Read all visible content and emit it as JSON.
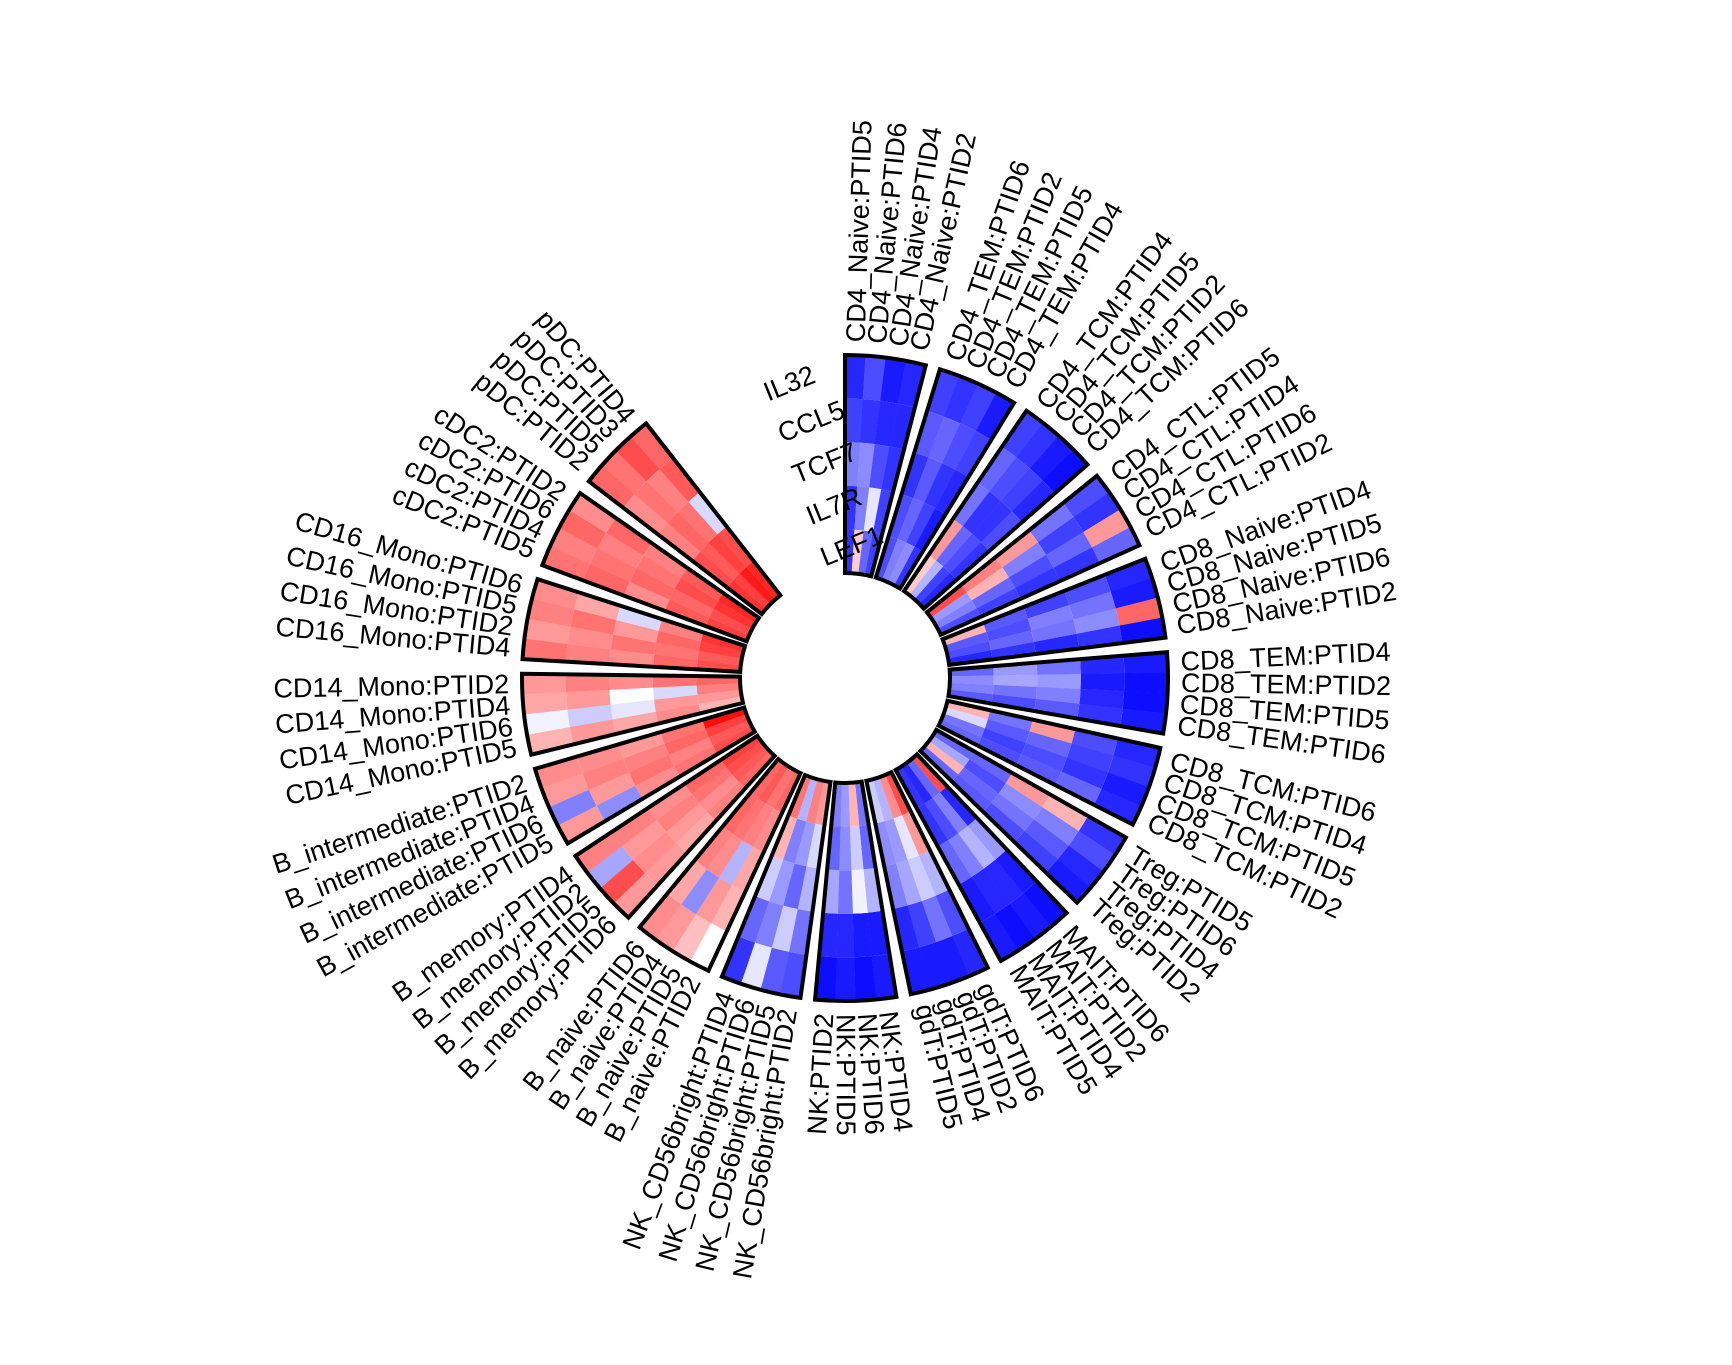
{
  "chart_data": {
    "type": "heatmap",
    "layout": "circular",
    "color_scale": {
      "low": "#ff0000",
      "mid": "#ffffff",
      "high": "#0000ff"
    },
    "genes": [
      "IL32",
      "CCL5",
      "TCF7",
      "IL7R",
      "LEF1"
    ],
    "sectors": [
      {
        "name": "CD4_Naive",
        "labels": [
          "CD4_Naive:PTID5",
          "CD4_Naive:PTID6",
          "CD4_Naive:PTID4",
          "CD4_Naive:PTID2"
        ],
        "values": [
          [
            0.85,
            0.7,
            0.9,
            0.85
          ],
          [
            0.75,
            0.8,
            0.85,
            0.85
          ],
          [
            0.5,
            0.45,
            0.7,
            0.8
          ],
          [
            0.8,
            0.5,
            0.1,
            0.75
          ],
          [
            0.8,
            -0.2,
            0.6,
            0.75
          ]
        ]
      },
      {
        "name": "CD4_TEM",
        "labels": [
          "CD4_TEM:PTID6",
          "CD4_TEM:PTID2",
          "CD4_TEM:PTID5",
          "CD4_TEM:PTID4"
        ],
        "values": [
          [
            0.75,
            0.8,
            0.75,
            0.9
          ],
          [
            0.65,
            0.6,
            0.7,
            0.75
          ],
          [
            0.8,
            0.65,
            0.8,
            0.85
          ],
          [
            0.7,
            0.6,
            0.75,
            0.9
          ],
          [
            0.7,
            0.5,
            0.45,
            0.8
          ]
        ]
      },
      {
        "name": "CD4_TCM",
        "labels": [
          "CD4_TCM:PTID4",
          "CD4_TCM:PTID5",
          "CD4_TCM:PTID2",
          "CD4_TCM:PTID6"
        ],
        "values": [
          [
            0.75,
            0.8,
            0.9,
            0.95
          ],
          [
            0.6,
            0.7,
            0.75,
            0.85
          ],
          [
            0.55,
            0.8,
            0.8,
            0.7
          ],
          [
            -0.4,
            0.6,
            0.7,
            0.8
          ],
          [
            -0.2,
            0.3,
            0.75,
            0.85
          ]
        ]
      },
      {
        "name": "CD4_CTL",
        "labels": [
          "CD4_CTL:PTID5",
          "CD4_CTL:PTID4",
          "CD4_CTL:PTID6",
          "CD4_CTL:PTID2"
        ],
        "values": [
          [
            0.7,
            0.8,
            -0.4,
            0.6
          ],
          [
            0.55,
            0.75,
            0.6,
            0.8
          ],
          [
            -0.4,
            0.5,
            0.7,
            0.8
          ],
          [
            -0.5,
            -0.3,
            0.6,
            0.75
          ],
          [
            -0.7,
            0.4,
            0.5,
            0.7
          ]
        ]
      },
      {
        "name": "CD8_Naive",
        "labels": [
          "CD8_Naive:PTID4",
          "CD8_Naive:PTID5",
          "CD8_Naive:PTID6",
          "CD8_Naive:PTID2"
        ],
        "values": [
          [
            0.85,
            0.9,
            -0.6,
            0.95
          ],
          [
            0.7,
            0.55,
            0.45,
            0.8
          ],
          [
            0.75,
            0.5,
            0.55,
            0.85
          ],
          [
            0.65,
            0.7,
            0.6,
            0.8
          ],
          [
            -0.3,
            0.65,
            0.7,
            0.85
          ]
        ]
      },
      {
        "name": "CD8_TEM",
        "labels": [
          "CD8_TEM:PTID4",
          "CD8_TEM:PTID2",
          "CD8_TEM:PTID5",
          "CD8_TEM:PTID6"
        ],
        "values": [
          [
            0.9,
            0.95,
            0.95,
            0.9
          ],
          [
            0.85,
            0.9,
            0.85,
            0.8
          ],
          [
            0.55,
            0.4,
            0.5,
            0.65
          ],
          [
            0.4,
            0.35,
            0.55,
            0.7
          ],
          [
            0.6,
            0.45,
            0.5,
            0.65
          ]
        ]
      },
      {
        "name": "CD8_TCM",
        "labels": [
          "CD8_TCM:PTID6",
          "CD8_TCM:PTID4",
          "CD8_TCM:PTID5",
          "CD8_TCM:PTID2"
        ],
        "values": [
          [
            0.85,
            0.8,
            0.9,
            0.85
          ],
          [
            0.7,
            0.75,
            0.8,
            0.6
          ],
          [
            -0.4,
            0.6,
            0.7,
            0.65
          ],
          [
            0.55,
            0.65,
            0.75,
            0.7
          ],
          [
            -0.3,
            0.15,
            0.55,
            0.6
          ]
        ]
      },
      {
        "name": "Treg",
        "labels": [
          "Treg:PTID5",
          "Treg:PTID6",
          "Treg:PTID4",
          "Treg:PTID2"
        ],
        "values": [
          [
            0.8,
            0.7,
            0.85,
            0.9
          ],
          [
            -0.3,
            0.5,
            0.65,
            0.75
          ],
          [
            -0.4,
            0.45,
            0.55,
            0.7
          ],
          [
            0.6,
            0.7,
            0.6,
            0.65
          ],
          [
            0.6,
            0.35,
            -0.3,
            0.6
          ]
        ]
      },
      {
        "name": "MAIT",
        "labels": [
          "MAIT:PTID6",
          "MAIT:PTID2",
          "MAIT:PTID4",
          "MAIT:PTID5"
        ],
        "values": [
          [
            0.95,
            0.9,
            0.95,
            0.9
          ],
          [
            0.9,
            0.85,
            0.85,
            0.9
          ],
          [
            0.4,
            0.3,
            0.5,
            0.6
          ],
          [
            0.85,
            0.5,
            0.7,
            0.8
          ],
          [
            -0.7,
            0.6,
            0.85,
            0.8
          ]
        ]
      },
      {
        "name": "gdT",
        "labels": [
          "gdT:PTID6",
          "gdT:PTID2",
          "gdT:PTID4",
          "gdT:PTID5"
        ],
        "values": [
          [
            0.85,
            0.9,
            0.9,
            0.9
          ],
          [
            0.7,
            0.55,
            0.75,
            0.85
          ],
          [
            0.3,
            0.2,
            0.35,
            0.5
          ],
          [
            -0.4,
            0.1,
            0.4,
            0.45
          ],
          [
            -0.7,
            -0.45,
            0.3,
            0.2
          ]
        ]
      },
      {
        "name": "NK",
        "labels": [
          "NK:PTID4",
          "NK:PTID6",
          "NK:PTID5",
          "NK:PTID2"
        ],
        "values": [
          [
            0.9,
            0.95,
            0.9,
            0.95
          ],
          [
            0.9,
            0.9,
            0.85,
            0.85
          ],
          [
            0.3,
            0.05,
            0.55,
            0.35
          ],
          [
            0.6,
            0.2,
            0.45,
            0.6
          ],
          [
            0.55,
            -0.3,
            0.4,
            0.5
          ]
        ]
      },
      {
        "name": "NK_CD56bright",
        "labels": [
          "NK_CD56bright:PTID2",
          "NK_CD56bright:PTID5",
          "NK_CD56bright:PTID6",
          "NK_CD56bright:PTID4"
        ],
        "values": [
          [
            0.7,
            0.65,
            0.1,
            0.8
          ],
          [
            0.55,
            0.2,
            0.5,
            0.6
          ],
          [
            0.3,
            0.6,
            0.4,
            0.2
          ],
          [
            0.15,
            0.4,
            0.5,
            -0.3
          ],
          [
            -0.4,
            -0.5,
            0.3,
            -0.55
          ]
        ]
      },
      {
        "name": "B_naive",
        "labels": [
          "B_naive:PTID2",
          "B_naive:PTID5",
          "B_naive:PTID4",
          "B_naive:PTID6"
        ],
        "values": [
          [
            0.0,
            -0.25,
            -0.4,
            -0.45
          ],
          [
            -0.3,
            -0.4,
            0.45,
            -0.35
          ],
          [
            -0.35,
            0.3,
            -0.45,
            -0.5
          ],
          [
            -0.45,
            -0.5,
            -0.55,
            -0.6
          ],
          [
            -0.6,
            -0.55,
            -0.65,
            -0.6
          ]
        ]
      },
      {
        "name": "B_memory",
        "labels": [
          "B_memory:PTID6",
          "B_memory:PTID5",
          "B_memory:PTID2",
          "B_memory:PTID4"
        ],
        "values": [
          [
            -0.4,
            -0.7,
            0.35,
            -0.5
          ],
          [
            -0.4,
            -0.45,
            -0.4,
            -0.5
          ],
          [
            -0.35,
            -0.4,
            -0.5,
            -0.45
          ],
          [
            -0.5,
            -0.45,
            -0.55,
            -0.6
          ],
          [
            -0.6,
            -0.65,
            -0.7,
            -0.75
          ]
        ]
      },
      {
        "name": "B_intermediate",
        "labels": [
          "B_intermediate:PTID5",
          "B_intermediate:PTID6",
          "B_intermediate:PTID4",
          "B_intermediate:PTID2"
        ],
        "values": [
          [
            -0.4,
            0.5,
            -0.4,
            -0.45
          ],
          [
            0.45,
            -0.4,
            -0.5,
            -0.45
          ],
          [
            -0.45,
            -0.55,
            -0.5,
            -0.4
          ],
          [
            -0.55,
            -0.5,
            -0.6,
            -0.55
          ],
          [
            -0.7,
            -0.65,
            -0.75,
            -0.95
          ]
        ]
      },
      {
        "name": "CD14_Mono",
        "labels": [
          "CD14_Mono:PTID5",
          "CD14_Mono:PTID6",
          "CD14_Mono:PTID4",
          "CD14_Mono:PTID2"
        ],
        "values": [
          [
            -0.3,
            0.05,
            -0.35,
            -0.4
          ],
          [
            -0.4,
            0.2,
            -0.4,
            -0.5
          ],
          [
            -0.35,
            0.1,
            0.0,
            -0.45
          ],
          [
            -0.45,
            -0.4,
            0.15,
            -0.55
          ],
          [
            -0.3,
            -0.4,
            -0.5,
            -0.6
          ]
        ]
      },
      {
        "name": "CD16_Mono",
        "labels": [
          "CD16_Mono:PTID4",
          "CD16_Mono:PTID2",
          "CD16_Mono:PTID5",
          "CD16_Mono:PTID6"
        ],
        "values": [
          [
            -0.55,
            -0.4,
            -0.5,
            -0.45
          ],
          [
            -0.5,
            -0.45,
            -0.55,
            -0.35
          ],
          [
            -0.45,
            -0.55,
            -0.4,
            0.15
          ],
          [
            -0.6,
            -0.55,
            -0.6,
            -0.5
          ],
          [
            -0.7,
            -0.65,
            -0.75,
            -0.8
          ]
        ]
      },
      {
        "name": "cDC2",
        "labels": [
          "cDC2:PTID5",
          "cDC2:PTID4",
          "cDC2:PTID6",
          "cDC2:PTID2"
        ],
        "values": [
          [
            -0.55,
            -0.5,
            -0.6,
            -0.45
          ],
          [
            -0.6,
            -0.55,
            -0.5,
            -0.6
          ],
          [
            -0.45,
            -0.6,
            -0.55,
            -0.5
          ],
          [
            -0.65,
            -0.6,
            -0.7,
            -0.65
          ],
          [
            -0.75,
            -0.7,
            -0.8,
            -0.85
          ]
        ]
      },
      {
        "name": "pDC",
        "labels": [
          "pDC:PTID2",
          "pDC:PTID5",
          "pDC:PTID3",
          "pDC:PTID4"
        ],
        "values": [
          [
            -0.6,
            -0.55,
            -0.7,
            -0.6
          ],
          [
            -0.45,
            -0.55,
            -0.5,
            -0.65
          ],
          [
            -0.5,
            -0.6,
            -0.55,
            0.15
          ],
          [
            -0.7,
            -0.65,
            -0.75,
            -0.7
          ],
          [
            -0.8,
            -0.75,
            -0.9,
            -0.85
          ]
        ]
      }
    ]
  }
}
